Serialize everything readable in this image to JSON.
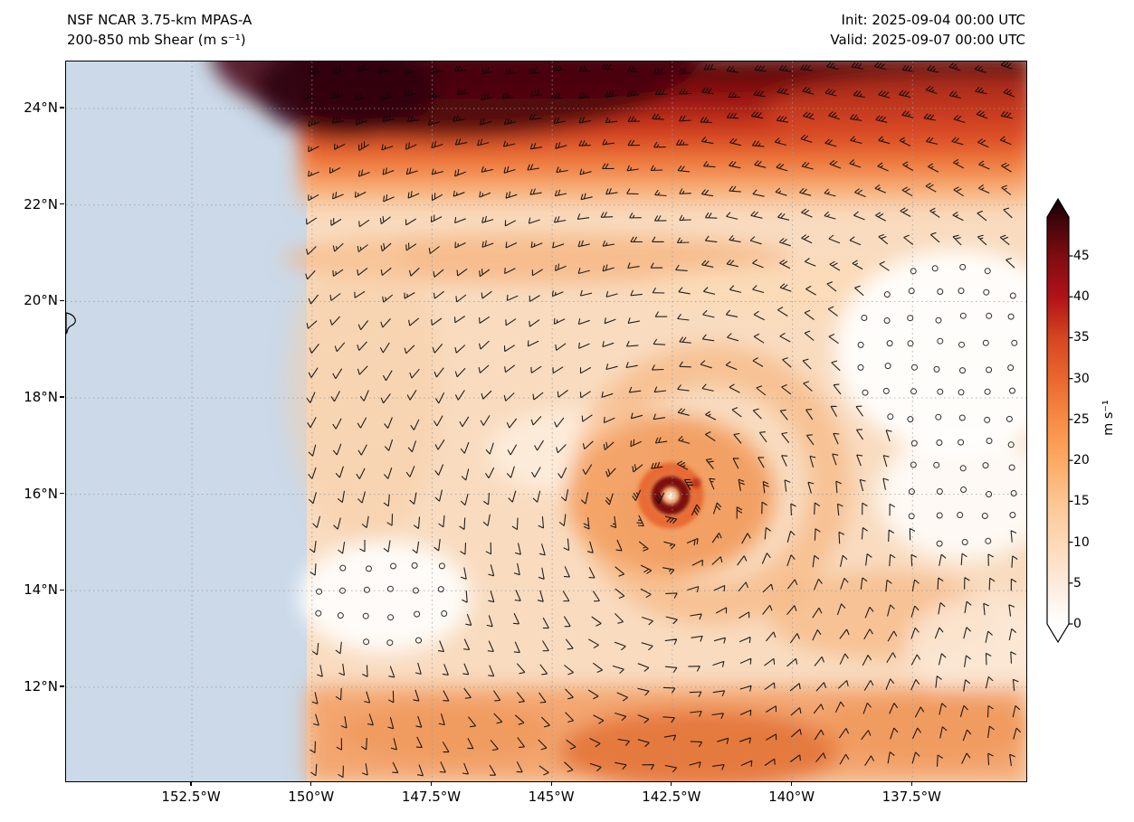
{
  "header": {
    "model_title": "NSF NCAR 3.75-km MPAS-A",
    "field_title": "200-850 mb Shear (m s⁻¹)",
    "init_label": "Init: 2025-09-04 00:00 UTC",
    "valid_label": "Valid: 2025-09-07 00:00 UTC"
  },
  "chart_data": {
    "type": "heatmap",
    "title": "NSF NCAR 3.75-km MPAS-A — 200-850 mb Shear (m s⁻¹)",
    "init_time": "2025-09-04 00:00 UTC",
    "valid_time": "2025-09-07 00:00 UTC",
    "units": "m s⁻¹",
    "x_axis": {
      "ticks": [
        {
          "label": "152.5°W",
          "value": 152.5
        },
        {
          "label": "150°W",
          "value": 150
        },
        {
          "label": "147.5°W",
          "value": 147.5
        },
        {
          "label": "145°W",
          "value": 145
        },
        {
          "label": "142.5°W",
          "value": 142.5
        },
        {
          "label": "140°W",
          "value": 140
        },
        {
          "label": "137.5°W",
          "value": 137.5
        }
      ],
      "range_deg_west": [
        155.1,
        135.1
      ]
    },
    "y_axis": {
      "ticks": [
        {
          "label": "24°N",
          "value": 24
        },
        {
          "label": "22°N",
          "value": 22
        },
        {
          "label": "20°N",
          "value": 20
        },
        {
          "label": "18°N",
          "value": 18
        },
        {
          "label": "16°N",
          "value": 16
        },
        {
          "label": "14°N",
          "value": 14
        },
        {
          "label": "12°N",
          "value": 12
        }
      ],
      "range_deg_north": [
        10.0,
        25.0
      ]
    },
    "colorbar": {
      "label": "m s⁻¹",
      "ticks": [
        45,
        40,
        35,
        30,
        25,
        20,
        15,
        10,
        5,
        0
      ],
      "range": [
        0,
        45
      ],
      "extend": "both",
      "stops": [
        {
          "v": 49.5,
          "color": "#3f040a"
        },
        {
          "v": 45,
          "color": "#7d0d11"
        },
        {
          "v": 40,
          "color": "#b01217"
        },
        {
          "v": 35,
          "color": "#d44621"
        },
        {
          "v": 30,
          "color": "#e9672f"
        },
        {
          "v": 25,
          "color": "#f78b44"
        },
        {
          "v": 20,
          "color": "#fda963"
        },
        {
          "v": 15,
          "color": "#fcc592"
        },
        {
          "v": 10,
          "color": "#fdd9b6"
        },
        {
          "v": 5,
          "color": "#fdeadc"
        },
        {
          "v": 0,
          "color": "#ffffff"
        }
      ],
      "over_color": "#0c0103",
      "under_color": "#ffffff"
    },
    "overlay": "shear-vector wind barbs on a ~0.5 degree grid; open circles plotted where shear is near calm",
    "masked_region": "area west of 150°W shaded light blue (outside MPAS-A regional domain)",
    "wind_barbs": {
      "grid_spacing_px": 27.4,
      "color": "black"
    },
    "features": [
      "broad >40 m s⁻¹ shear band along the northern edge (23.5–25°N), darkest west of 145°W",
      "tropical cyclone near 142.3°W, 15.9°N: ring of 30–45 m s⁻¹ shear surrounding a near-zero white center",
      "low-shear (<5 m s⁻¹) pockets near 138–136.5°W 19–21.5°N, ~136.5°W 15–16.5°N and 149–147.5°W 13.5–15°N marked with calm circles",
      "moderate 15–25 m s⁻¹ shear band across the southern edge (10–12.5°N)"
    ],
    "geography": {
      "coastline": "eastern tip of Hawaii Island clipped at the left plot edge near 19.5°N"
    }
  }
}
